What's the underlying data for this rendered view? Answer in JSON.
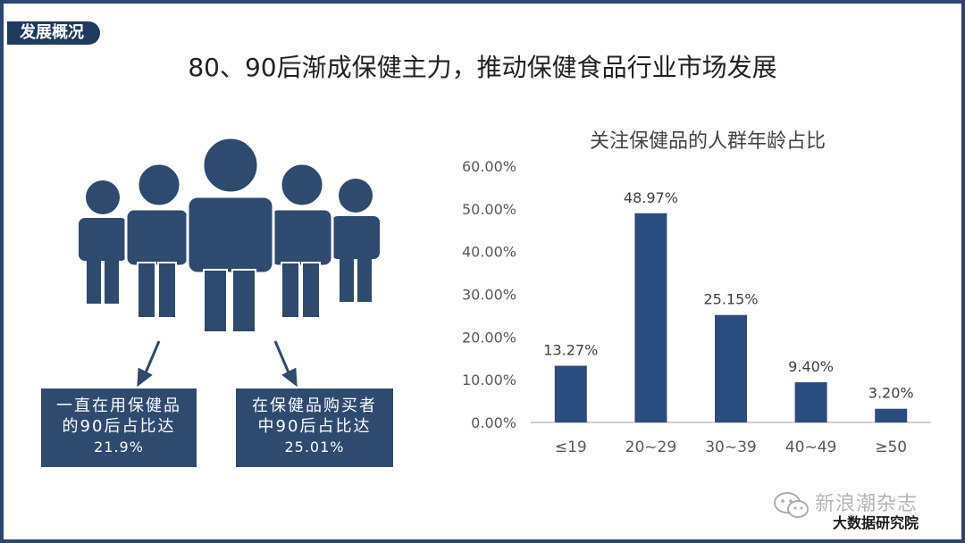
{
  "section_tag": "发展概况",
  "headline": "80、90后渐成保健主力，推动保健食品行业市场发展",
  "callouts": [
    {
      "line1": "一直在用保健品",
      "line2": "的90后占比达",
      "value": "21.9%"
    },
    {
      "line1": "在保健品购买者",
      "line2": "中90后占比达",
      "value": "25.01%"
    }
  ],
  "colors": {
    "frame": "#2b4670",
    "bar": "#2b4c7e",
    "people": "#2e4a6e",
    "callout_bg": "#2e4a6e"
  },
  "icons": [
    "people-group-icon",
    "arrow-down-icon",
    "wechat-icon"
  ],
  "chart_data": {
    "type": "bar",
    "title": "关注保健品的人群年龄占比",
    "categories": [
      "≤19",
      "20~29",
      "30~39",
      "40~49",
      "≥50"
    ],
    "values": [
      13.27,
      48.97,
      25.15,
      9.4,
      3.2
    ],
    "data_labels": [
      "13.27%",
      "48.97%",
      "25.15%",
      "9.40%",
      "3.20%"
    ],
    "y_ticks": [
      "0.00%",
      "10.00%",
      "20.00%",
      "30.00%",
      "40.00%",
      "50.00%",
      "60.00%"
    ],
    "ylim": [
      0,
      60
    ],
    "xlabel": "",
    "ylabel": "",
    "grid": false,
    "legend": "none"
  },
  "watermark": {
    "line1": "新浪潮杂志",
    "line2": "大数据研究院"
  }
}
